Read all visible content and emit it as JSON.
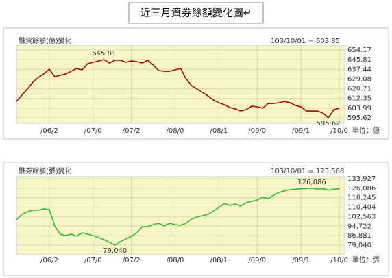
{
  "title": "近三月資券餘額變化圖↵",
  "chart_data": [
    {
      "type": "line",
      "title": "融資餘額(億)變化",
      "latest": "103/10/01 = 603.85",
      "unit": "單位：億",
      "color": "#b00000",
      "grid": true,
      "max_label": "645.81",
      "min_label": "595.62",
      "values": [
        609.8,
        615.2,
        620.5,
        626.4,
        630.5,
        633.5,
        637.6,
        631.1,
        632.3,
        633.5,
        635.8,
        638.2,
        637.0,
        642.3,
        643.5,
        644.7,
        645.81,
        642.9,
        645.3,
        645.3,
        643.5,
        644.7,
        644.1,
        642.9,
        645.3,
        641.2,
        636.4,
        635.8,
        635.8,
        637.0,
        638.2,
        629.3,
        623.4,
        620.5,
        617.5,
        614.5,
        611.0,
        608.6,
        606.9,
        604.5,
        603.3,
        601.5,
        602.7,
        605.7,
        605.1,
        603.9,
        608.0,
        608.0,
        608.6,
        609.8,
        608.6,
        606.3,
        605.1,
        601.5,
        601.5,
        601.5,
        599.8,
        595.62,
        602.7,
        603.85
      ],
      "xlim": [
        0,
        60
      ],
      "xticks": [
        {
          "value": 6,
          "label": "/06/2"
        },
        {
          "value": 14,
          "label": "/07/0"
        },
        {
          "value": 21,
          "label": "/07/2"
        },
        {
          "value": 29,
          "label": "/08/0"
        },
        {
          "value": 37,
          "label": "/08/1"
        },
        {
          "value": 44,
          "label": "/09/0"
        },
        {
          "value": 52,
          "label": "/09/1"
        },
        {
          "value": 59,
          "label": "/10/0"
        }
      ],
      "ylim": [
        590.9,
        658.3
      ],
      "yticks": [
        654.17,
        645.81,
        637.44,
        629.08,
        620.71,
        612.35,
        603.99,
        595.62
      ]
    },
    {
      "type": "line",
      "title": "融券餘額(張)變化",
      "latest": "103/10/01 = 125,568",
      "unit": "單位：張",
      "color": "#33bb33",
      "grid": true,
      "max_label": "126,086",
      "min_label": "79,040",
      "values": [
        99980,
        104500,
        106770,
        107900,
        107900,
        109030,
        108470,
        94890,
        88100,
        86970,
        88100,
        86400,
        89230,
        88100,
        86970,
        85270,
        83570,
        81310,
        79040,
        81870,
        84140,
        86400,
        89230,
        94320,
        94320,
        96020,
        97150,
        94890,
        97150,
        96020,
        95450,
        97150,
        100540,
        102240,
        103370,
        104500,
        107330,
        110160,
        113560,
        111860,
        112990,
        111290,
        114120,
        115250,
        116390,
        118650,
        117520,
        120350,
        122610,
        123900,
        124800,
        125200,
        125600,
        125800,
        126086,
        125300,
        125700,
        124500,
        125100,
        125568
      ],
      "xlim": [
        0,
        60
      ],
      "xticks": [
        {
          "value": 6,
          "label": "/06/2"
        },
        {
          "value": 14,
          "label": "/07/0"
        },
        {
          "value": 21,
          "label": "/07/2"
        },
        {
          "value": 29,
          "label": "/08/0"
        },
        {
          "value": 37,
          "label": "/08/1"
        },
        {
          "value": 44,
          "label": "/09/0"
        },
        {
          "value": 52,
          "label": "/09/1"
        },
        {
          "value": 59,
          "label": "/10/0"
        }
      ],
      "ylim": [
        71120,
        135620
      ],
      "yticks": [
        {
          "value": 133927,
          "label": "133,927"
        },
        {
          "value": 126086,
          "label": "126,086"
        },
        {
          "value": 118245,
          "label": "118,245"
        },
        {
          "value": 110404,
          "label": "110,404"
        },
        {
          "value": 102563,
          "label": "102,563"
        },
        {
          "value": 94722,
          "label": "94,722"
        },
        {
          "value": 86881,
          "label": "86,881"
        },
        {
          "value": 79040,
          "label": "79,040"
        }
      ]
    }
  ]
}
